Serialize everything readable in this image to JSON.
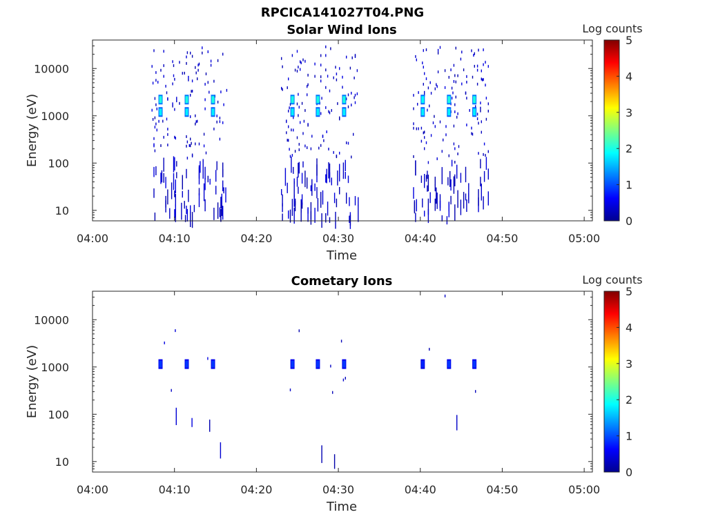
{
  "figure_title": "RPCICA141027T04.PNG",
  "colorbar": {
    "label": "Log counts",
    "ticks": [
      "0",
      "1",
      "2",
      "3",
      "4",
      "5"
    ],
    "range": [
      0,
      5
    ]
  },
  "chart_data": [
    {
      "type": "heatmap",
      "title": "Solar Wind Ions",
      "xlabel": "Time",
      "ylabel": "Energy (eV)",
      "x_ticks": [
        "04:00",
        "04:10",
        "04:20",
        "04:30",
        "04:40",
        "04:50",
        "05:00"
      ],
      "x_range_minutes": [
        0,
        61
      ],
      "y_ticks": [
        "10",
        "100",
        "1000",
        "10000"
      ],
      "y_scale": "log",
      "y_range": [
        6,
        40000
      ],
      "bursts_minutes": [
        [
          7.2,
          16.5
        ],
        [
          23.0,
          32.5
        ],
        [
          39.0,
          48.5
        ]
      ],
      "peaks": [
        {
          "t": 8.3,
          "e": 2200,
          "v": 2.0
        },
        {
          "t": 8.3,
          "e": 1200,
          "v": 1.8
        },
        {
          "t": 11.5,
          "e": 2200,
          "v": 2.0
        },
        {
          "t": 11.5,
          "e": 1200,
          "v": 1.8
        },
        {
          "t": 14.7,
          "e": 2200,
          "v": 2.0
        },
        {
          "t": 14.7,
          "e": 1200,
          "v": 1.8
        },
        {
          "t": 24.4,
          "e": 2200,
          "v": 2.0
        },
        {
          "t": 24.4,
          "e": 1200,
          "v": 1.8
        },
        {
          "t": 27.5,
          "e": 2200,
          "v": 2.0
        },
        {
          "t": 27.5,
          "e": 1200,
          "v": 1.8
        },
        {
          "t": 30.7,
          "e": 2200,
          "v": 2.0
        },
        {
          "t": 30.7,
          "e": 1200,
          "v": 1.8
        },
        {
          "t": 40.3,
          "e": 2200,
          "v": 1.9
        },
        {
          "t": 40.3,
          "e": 1200,
          "v": 1.8
        },
        {
          "t": 43.5,
          "e": 2200,
          "v": 2.0
        },
        {
          "t": 43.5,
          "e": 1200,
          "v": 1.8
        },
        {
          "t": 46.6,
          "e": 2200,
          "v": 2.0
        },
        {
          "t": 46.6,
          "e": 1200,
          "v": 1.8
        }
      ],
      "scatter_energy_range": [
        6,
        30000
      ],
      "scatter_value": 0.2
    },
    {
      "type": "heatmap",
      "title": "Cometary Ions",
      "xlabel": "Time",
      "ylabel": "Energy (eV)",
      "x_ticks": [
        "04:00",
        "04:10",
        "04:20",
        "04:30",
        "04:40",
        "04:50",
        "05:00"
      ],
      "x_range_minutes": [
        0,
        61
      ],
      "y_ticks": [
        "10",
        "100",
        "1000",
        "10000"
      ],
      "y_scale": "log",
      "y_range": [
        6,
        40000
      ],
      "bursts_minutes": [
        [
          8.0,
          16.5
        ],
        [
          23.0,
          32.0
        ],
        [
          39.0,
          48.5
        ]
      ],
      "peaks": [
        {
          "t": 8.3,
          "e": 1150,
          "v": 0.9
        },
        {
          "t": 11.5,
          "e": 1150,
          "v": 0.9
        },
        {
          "t": 14.7,
          "e": 1150,
          "v": 0.9
        },
        {
          "t": 24.4,
          "e": 1150,
          "v": 0.9
        },
        {
          "t": 27.5,
          "e": 1150,
          "v": 0.9
        },
        {
          "t": 30.7,
          "e": 1150,
          "v": 0.9
        },
        {
          "t": 40.3,
          "e": 1150,
          "v": 0.8
        },
        {
          "t": 43.5,
          "e": 1150,
          "v": 0.9
        },
        {
          "t": 46.6,
          "e": 1150,
          "v": 0.9
        }
      ],
      "scatter_energy_range": [
        6,
        40000
      ],
      "scatter_value": 0.2
    }
  ]
}
